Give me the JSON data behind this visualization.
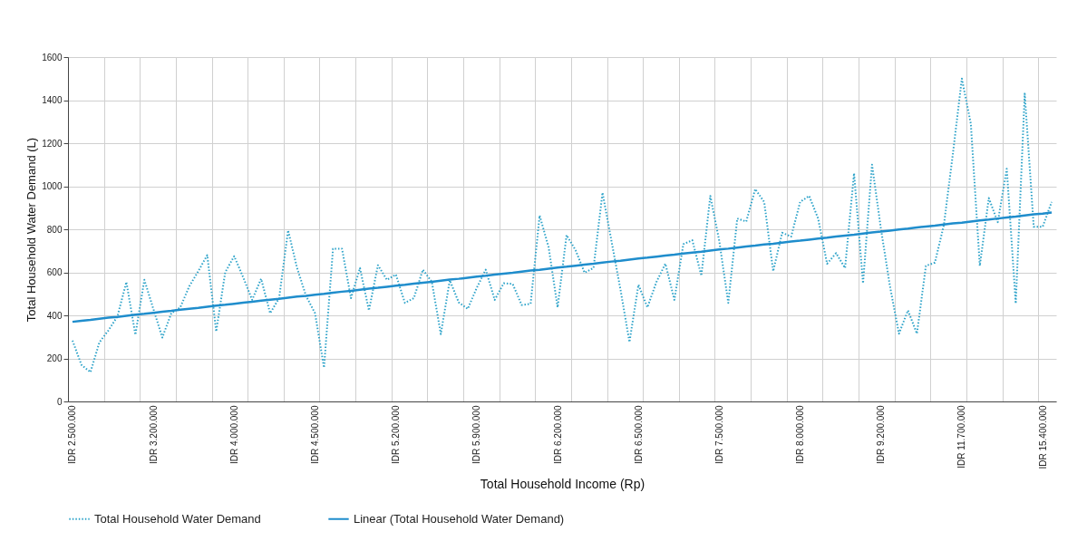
{
  "chart_data": {
    "type": "line",
    "xlabel": "Total Household Income (Rp)",
    "ylabel": "Total Household Water Demand (L)",
    "categories": [
      "IDR 2.500.000",
      null,
      null,
      null,
      null,
      null,
      null,
      null,
      null,
      "IDR 3.200.000",
      null,
      null,
      null,
      null,
      null,
      null,
      null,
      null,
      "IDR 4.000.000",
      null,
      null,
      null,
      null,
      null,
      null,
      null,
      null,
      "IDR 4.500.000",
      null,
      null,
      null,
      null,
      null,
      null,
      null,
      null,
      "IDR 5.200.000",
      null,
      null,
      null,
      null,
      null,
      null,
      null,
      null,
      "IDR 5.900.000",
      null,
      null,
      null,
      null,
      null,
      null,
      null,
      null,
      "IDR 6.200.000",
      null,
      null,
      null,
      null,
      null,
      null,
      null,
      null,
      "IDR 6.500.000",
      null,
      null,
      null,
      null,
      null,
      null,
      null,
      null,
      "IDR 7.500.000",
      null,
      null,
      null,
      null,
      null,
      null,
      null,
      null,
      "IDR 8.000.000",
      null,
      null,
      null,
      null,
      null,
      null,
      null,
      null,
      "IDR 9.200.000",
      null,
      null,
      null,
      null,
      null,
      null,
      null,
      null,
      "IDR 11.700.000",
      null,
      null,
      null,
      null,
      null,
      null,
      null,
      null,
      "IDR 15.400.000",
      null
    ],
    "series": [
      {
        "name": "Total Household Water Demand",
        "line_style": "dotted",
        "color": "#2ea3c9",
        "values": [
          283,
          170,
          136,
          275,
          330,
          395,
          555,
          310,
          565,
          430,
          297,
          410,
          437,
          535,
          605,
          680,
          325,
          600,
          675,
          577,
          472,
          570,
          410,
          480,
          795,
          620,
          490,
          410,
          157,
          710,
          710,
          480,
          620,
          423,
          633,
          565,
          590,
          458,
          480,
          612,
          556,
          313,
          563,
          460,
          430,
          528,
          612,
          472,
          549,
          546,
          448,
          454,
          864,
          717,
          437,
          773,
          703,
          598,
          620,
          970,
          745,
          520,
          276,
          542,
          437,
          555,
          640,
          472,
          731,
          749,
          584,
          955,
          745,
          458,
          850,
          836,
          987,
          927,
          605,
          784,
          766,
          927,
          955,
          850,
          640,
          689,
          620,
          1060,
          549,
          1100,
          800,
          535,
          315,
          423,
          315,
          630,
          645,
          820,
          1150,
          1500,
          1290,
          630,
          945,
          833,
          1081,
          455,
          1430,
          812,
          812,
          927
        ]
      },
      {
        "name": "Linear (Total Household Water Demand)",
        "line_style": "solid",
        "color": "#1f8dcc",
        "values": [
          370,
          375,
          379,
          384,
          389,
          393,
          398,
          403,
          407,
          412,
          417,
          421,
          426,
          431,
          435,
          440,
          445,
          449,
          454,
          459,
          463,
          468,
          473,
          477,
          482,
          487,
          491,
          496,
          500,
          505,
          510,
          514,
          519,
          524,
          528,
          533,
          538,
          542,
          547,
          552,
          556,
          561,
          566,
          570,
          575,
          580,
          584,
          589,
          594,
          598,
          603,
          608,
          612,
          617,
          622,
          626,
          631,
          636,
          640,
          645,
          650,
          654,
          659,
          664,
          668,
          673,
          678,
          682,
          687,
          692,
          696,
          701,
          706,
          710,
          715,
          720,
          724,
          729,
          733,
          738,
          743,
          747,
          752,
          757,
          761,
          766,
          771,
          775,
          780,
          785,
          789,
          794,
          799,
          803,
          808,
          813,
          817,
          822,
          827,
          831,
          836,
          841,
          845,
          850,
          855,
          859,
          864,
          869,
          873,
          878
        ]
      }
    ],
    "ylim": [
      0,
      1600
    ],
    "yticks": [
      0,
      200,
      400,
      600,
      800,
      1000,
      1200,
      1400,
      1600
    ],
    "grid": true,
    "legend": "bottom"
  }
}
